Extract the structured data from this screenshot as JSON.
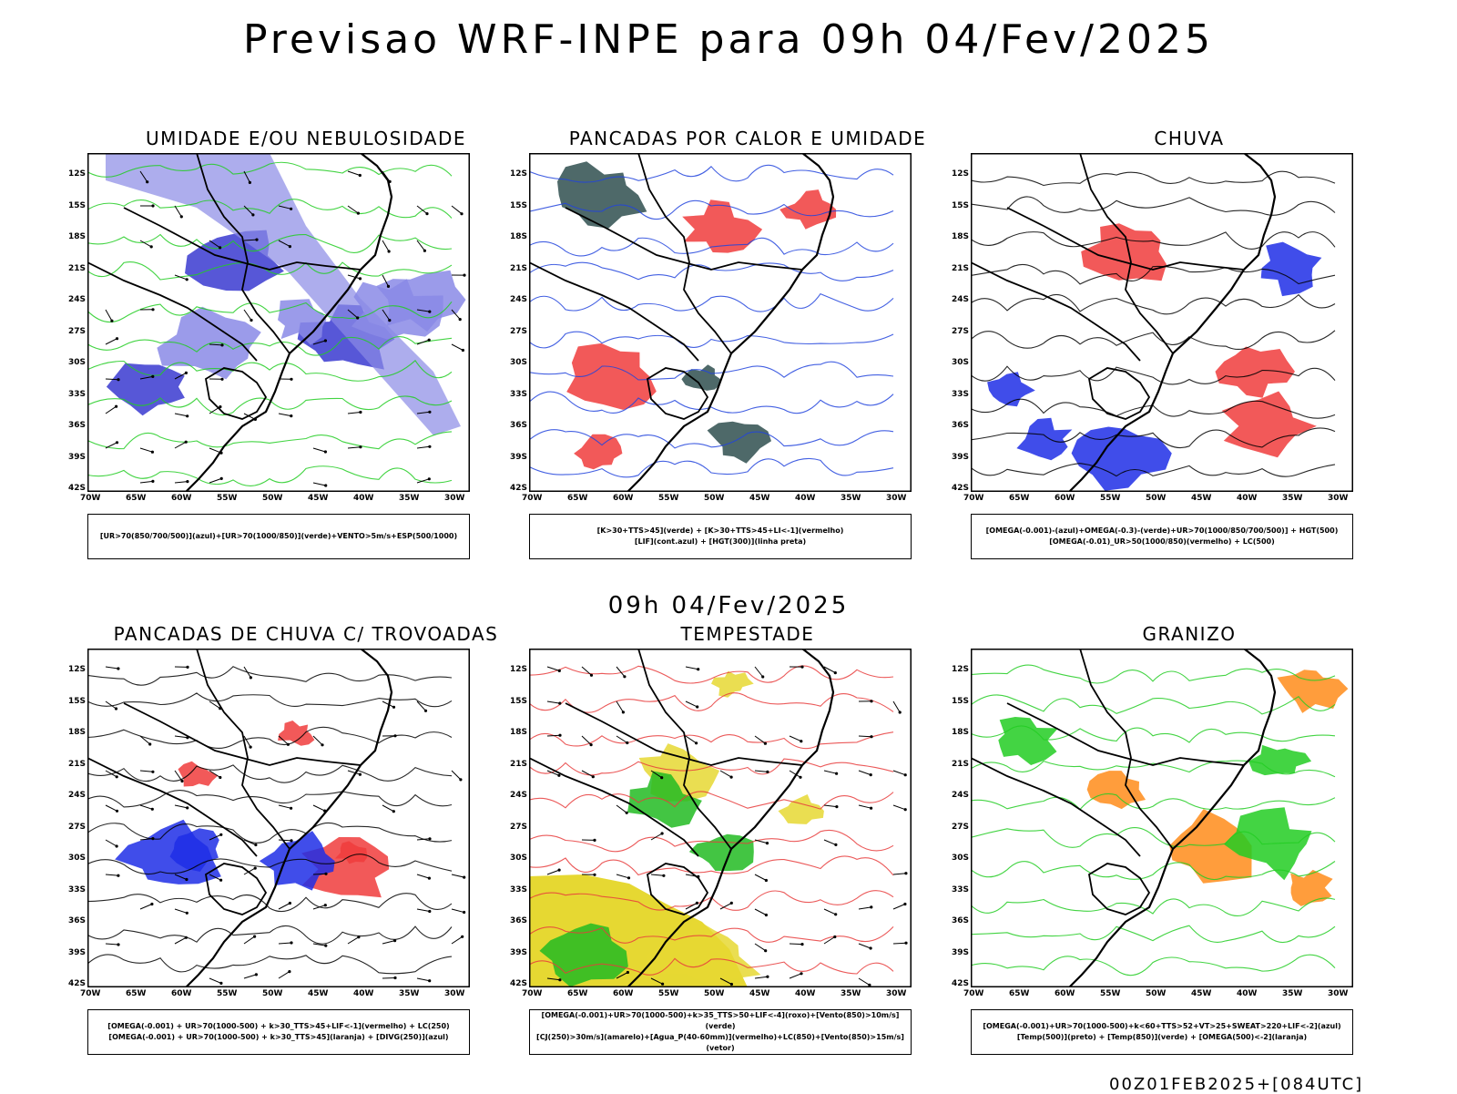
{
  "header": {
    "title": "Previsao WRF-INPE  para 09h 04/Fev/2025"
  },
  "middle_label": "09h 04/Fev/2025",
  "footer": "00Z01FEB2025+[084UTC]",
  "axes": {
    "lat_labels": [
      "12S",
      "15S",
      "18S",
      "21S",
      "24S",
      "27S",
      "30S",
      "33S",
      "36S",
      "39S",
      "42S"
    ],
    "lon_labels": [
      "70W",
      "65W",
      "60W",
      "55W",
      "50W",
      "45W",
      "40W",
      "35W",
      "30W"
    ]
  },
  "panels": [
    {
      "title": "UMIDADE E/OU NEBULOSIDADE",
      "legend": [
        "[UR>70(850/700/500)](azul)+[UR>70(1000/850)](verde)+VENTO>5m/s+ESP(500/1000)"
      ],
      "fill_colors": [
        "#8a8ae6",
        "#3a3ad0"
      ],
      "line_color": "#22cc22"
    },
    {
      "title": "PANCADAS POR CALOR E UMIDADE",
      "legend": [
        "[K>30+TTS>45](verde) + [K>30+TTS>45+LI<-1](vermelho)",
        "[LIF](cont.azul) + [HGT(300)](linha preta)"
      ],
      "fill_colors": [
        "#f03c3c",
        "#2f4f4f"
      ],
      "line_color": "#2244dd"
    },
    {
      "title": "CHUVA",
      "legend": [
        "[OMEGA(-0.001)-(azul)+OMEGA(-0.3)-(verde)+UR>70(1000/850/700/500)] + HGT(500)",
        "[OMEGA(-0.01)_UR>50(1000/850)(vermelho) + LC(500)"
      ],
      "fill_colors": [
        "#1e2ee6",
        "#f03c3c"
      ],
      "line_color": "#000000"
    },
    {
      "title": "PANCADAS DE CHUVA C/ TROVOADAS",
      "legend": [
        "[OMEGA(-0.001) + UR>70(1000-500) + k>30_TTS>45+LIF<-1](vermelho) + LC(250)",
        "[OMEGA(-0.001) + UR>70(1000-500) + k>30_TTS>45](laranja) + [DIVG(250)](azul)"
      ],
      "fill_colors": [
        "#f03c3c",
        "#1e2ee6"
      ],
      "line_color": "#000000"
    },
    {
      "title": "TEMPESTADE",
      "legend": [
        "[OMEGA(-0.001)+UR>70(1000-500)+k>35_TTS>50+LIF<-4](roxo)+[Vento(850)>10m/s](verde)",
        "[CJ(250)>30m/s](amarelo)+[Agua_P(40-60mm)](vermelho)+LC(850)+[Vento(850)>15m/s](vetor)"
      ],
      "fill_colors": [
        "#e6d832",
        "#22bb22"
      ],
      "line_color": "#e83c3c"
    },
    {
      "title": "GRANIZO",
      "legend": [
        "[OMEGA(-0.001)+UR>70(1000-500)+k<60+TTS>52+VT>25+SWEAT>220+LIF<-2](azul)",
        "[Temp(500)](preto) + [Temp(850)](verde) + [OMEGA(500)<-2](laranja)"
      ],
      "fill_colors": [
        "#ff8c1a",
        "#22cc22"
      ],
      "line_color": "#22cc22"
    }
  ]
}
